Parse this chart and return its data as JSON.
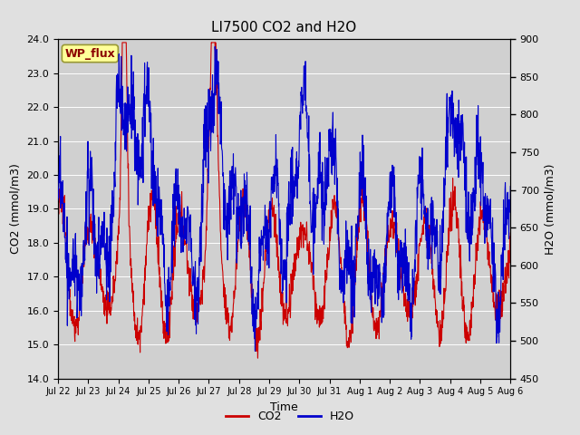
{
  "title": "LI7500 CO2 and H2O",
  "xlabel": "Time",
  "ylabel_left": "CO2 (mmol/m3)",
  "ylabel_right": "H2O (mmol/m3)",
  "co2_ylim": [
    14.0,
    24.0
  ],
  "h2o_ylim": [
    450,
    900
  ],
  "co2_yticks": [
    14.0,
    15.0,
    16.0,
    17.0,
    18.0,
    19.0,
    20.0,
    21.0,
    22.0,
    23.0,
    24.0
  ],
  "h2o_yticks": [
    450,
    500,
    550,
    600,
    650,
    700,
    750,
    800,
    850,
    900
  ],
  "x_tick_labels": [
    "Jul 22",
    "Jul 23",
    "Jul 24",
    "Jul 25",
    "Jul 26",
    "Jul 27",
    "Jul 28",
    "Jul 29",
    "Jul 30",
    "Jul 31",
    "Aug 1",
    "Aug 2",
    "Aug 3",
    "Aug 4",
    "Aug 5",
    "Aug 6"
  ],
  "watermark_text": "WP_flux",
  "co2_color": "#cc0000",
  "h2o_color": "#0000cc",
  "fig_bg_color": "#e0e0e0",
  "plot_bg_color": "#d0d0d0",
  "legend_co2": "CO2",
  "legend_h2o": "H2O",
  "grid_color": "#bbbbbb",
  "title_fontsize": 11,
  "label_fontsize": 9,
  "tick_fontsize": 8
}
